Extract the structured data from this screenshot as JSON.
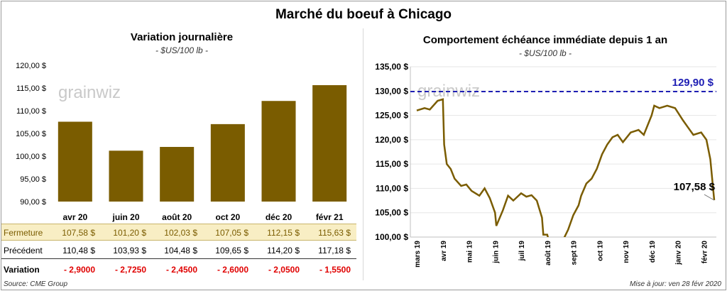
{
  "title": "Marché du boeuf à Chicago",
  "left": {
    "subtitle": "Variation journalière",
    "unit": "- $US/100 lb -",
    "watermark": "grainwiz"
  },
  "right": {
    "subtitle": "Comportement échéance immédiate depuis 1 an",
    "unit": "- $US/100 lb -",
    "watermark": "grainwiz",
    "ref_label": "129,90 $",
    "last_label": "107,58 $"
  },
  "table": {
    "close_label": "Fermeture",
    "prev_label": "Précédent",
    "var_label": "Variation",
    "close_values": [
      "107,58 $",
      "101,20 $",
      "102,03 $",
      "107,05 $",
      "112,15 $",
      "115,63 $"
    ],
    "prev_values": [
      "110,48 $",
      "103,93 $",
      "104,48 $",
      "109,65 $",
      "114,20 $",
      "117,18 $"
    ],
    "var_values": [
      "- 2,9000",
      "- 2,7250",
      "- 2,4500",
      "- 2,6000",
      "- 2,0500",
      "- 1,5500"
    ]
  },
  "footer": {
    "source": "Source: CME Group",
    "update": "Mise à jour: ven 28 févr 2020"
  },
  "colors": {
    "bar": "#7a5c00",
    "line": "#7a5c00",
    "ref": "#1f1fb4",
    "negative": "#e00000"
  },
  "chart_data": [
    {
      "type": "bar",
      "title": "Variation journalière",
      "categories": [
        "avr 20",
        "juin 20",
        "août 20",
        "oct 20",
        "déc 20",
        "févr 21"
      ],
      "values": [
        107.58,
        101.2,
        102.03,
        107.05,
        112.15,
        115.63
      ],
      "ylim": [
        90,
        120
      ],
      "yticks": [
        90,
        95,
        100,
        105,
        110,
        115,
        120
      ],
      "ytick_labels": [
        "90,00 $",
        "95,00 $",
        "100,00 $",
        "105,00 $",
        "110,00 $",
        "115,00 $",
        "120,00 $"
      ]
    },
    {
      "type": "line",
      "title": "Comportement échéance immédiate depuis 1 an",
      "ylim": [
        100,
        135
      ],
      "yticks": [
        100,
        105,
        110,
        115,
        120,
        125,
        130,
        135
      ],
      "ytick_labels": [
        "100,00 $",
        "105,00 $",
        "110,00 $",
        "115,00 $",
        "120,00 $",
        "125,00 $",
        "130,00 $",
        "135,00 $"
      ],
      "xtick_labels": [
        "mars 19",
        "avr 19",
        "mai 19",
        "juin 19",
        "juil 19",
        "août 19",
        "sept 19",
        "oct 19",
        "nov 19",
        "déc 19",
        "janv 20",
        "févr 20"
      ],
      "reference_line": 129.9,
      "last_value": 107.58,
      "x_months": [
        0,
        0.3,
        0.5,
        0.8,
        1.0,
        1.05,
        1.15,
        1.3,
        1.45,
        1.7,
        1.9,
        2.1,
        2.4,
        2.6,
        2.8,
        3.0,
        3.05,
        3.3,
        3.5,
        3.7,
        4.0,
        4.2,
        4.4,
        4.6,
        4.8,
        4.85,
        5.0,
        5.05,
        5.4,
        5.6,
        5.8,
        6.0,
        6.2,
        6.3,
        6.5,
        6.7,
        6.9,
        7.1,
        7.3,
        7.5,
        7.7,
        7.9,
        8.2,
        8.5,
        8.7,
        9.0,
        9.1,
        9.3,
        9.6,
        9.9,
        10.2,
        10.4,
        10.6,
        10.9,
        11.1,
        11.25,
        11.4
      ],
      "values": [
        126,
        126.5,
        126.2,
        128,
        128.3,
        119,
        115,
        114,
        112,
        110.5,
        110.8,
        109.5,
        108.5,
        110,
        108,
        105,
        102.3,
        105.5,
        108.5,
        107.5,
        109,
        108.3,
        108.6,
        107.5,
        104,
        100.5,
        100.5,
        99.5,
        99.2,
        99.3,
        101.5,
        104.5,
        106.5,
        108.5,
        111,
        112,
        114,
        117,
        119,
        120.5,
        121,
        119.5,
        121.5,
        122,
        121,
        125,
        127,
        126.5,
        127,
        126.5,
        124,
        122.5,
        121,
        121.5,
        120,
        116,
        107.58
      ]
    }
  ]
}
